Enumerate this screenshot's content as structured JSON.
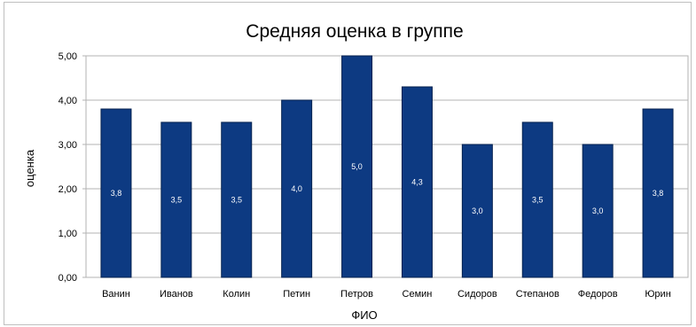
{
  "chart_data": {
    "type": "bar",
    "title": "Средняя оценка в группе",
    "xlabel": "ФИО",
    "ylabel": "оценка",
    "categories": [
      "Ванин",
      "Иванов",
      "Колин",
      "Петин",
      "Петров",
      "Семин",
      "Сидоров",
      "Степанов",
      "Федоров",
      "Юрин"
    ],
    "values": [
      3.8,
      3.5,
      3.5,
      4.0,
      5.0,
      4.3,
      3.0,
      3.5,
      3.0,
      3.8
    ],
    "data_labels": [
      "3,8",
      "3,5",
      "3,5",
      "4,0",
      "5,0",
      "4,3",
      "3,0",
      "3,5",
      "3,0",
      "3,8"
    ],
    "yticks": [
      "0,00",
      "1,00",
      "2,00",
      "3,00",
      "4,00",
      "5,00"
    ],
    "ylim": [
      0,
      5
    ],
    "grid": true,
    "legend": "none",
    "bar_color": "#0d3a82"
  }
}
